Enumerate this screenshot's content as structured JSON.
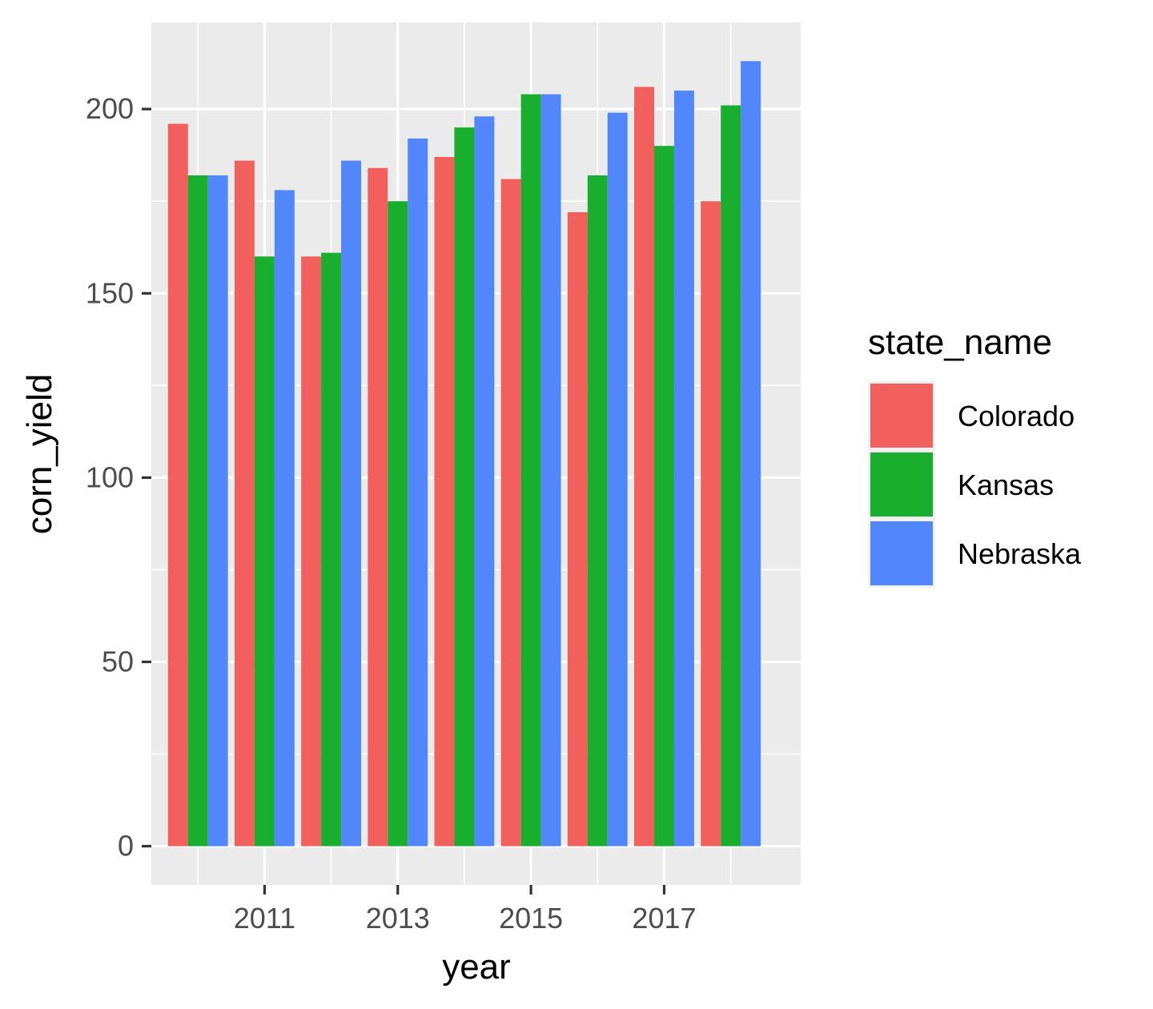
{
  "chart_data": {
    "type": "bar",
    "title": "",
    "xlabel": "year",
    "ylabel": "corn_yield",
    "x": [
      2010,
      2011,
      2012,
      2013,
      2014,
      2015,
      2016,
      2017,
      2018
    ],
    "x_tick_labels": [
      "2011",
      "2013",
      "2015",
      "2017"
    ],
    "x_ticks": [
      2011,
      2013,
      2015,
      2017
    ],
    "xlim": [
      2009.3,
      2019.05
    ],
    "y_ticks": [
      0,
      50,
      100,
      150,
      200
    ],
    "y_tick_labels": [
      "0",
      "50",
      "100",
      "150",
      "200"
    ],
    "ylim": [
      -10.5,
      223.5
    ],
    "grid": true,
    "legend": {
      "title": "state_name",
      "position": "right"
    },
    "series": [
      {
        "name": "Colorado",
        "color": "#F8766D",
        "values": [
          196,
          186,
          160,
          184,
          187,
          181,
          172,
          206,
          175
        ]
      },
      {
        "name": "Kansas",
        "color": "#00BA38",
        "values": [
          182,
          160,
          161,
          175,
          195,
          204,
          182,
          190,
          201
        ]
      },
      {
        "name": "Nebraska",
        "color": "#619CFF",
        "values": [
          182,
          178,
          186,
          192,
          198,
          204,
          199,
          205,
          213
        ]
      }
    ]
  },
  "style": {
    "panel_background": "#EBEBEB",
    "grid_color": "#FFFFFF",
    "tick_color": "#333333",
    "bar_colors": {
      "Colorado": "#F2605E",
      "Kansas": "#1AAE2F",
      "Nebraska": "#5287FC"
    }
  }
}
